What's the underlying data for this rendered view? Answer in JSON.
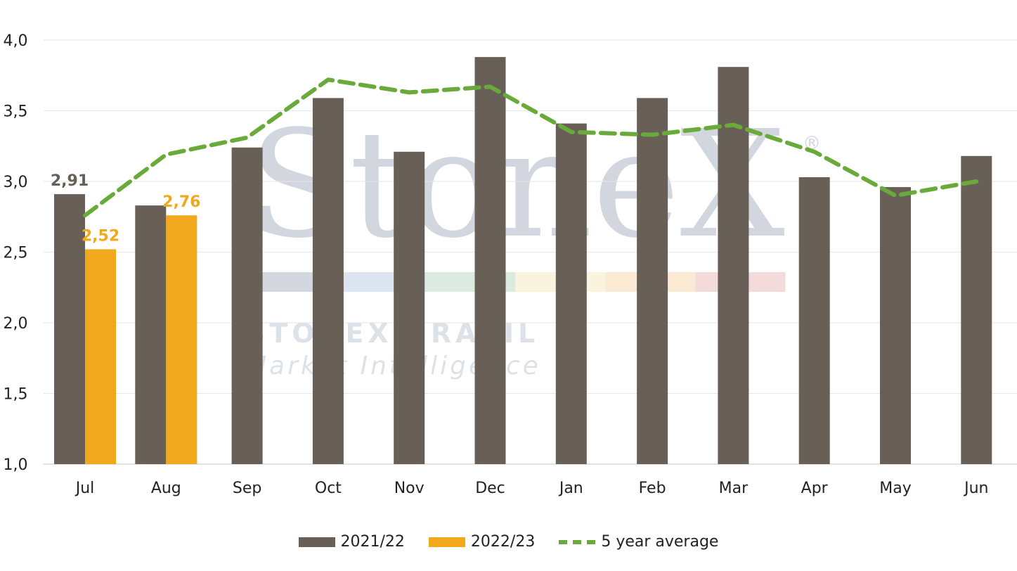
{
  "chart_data": {
    "type": "bar",
    "categories": [
      "Jul",
      "Aug",
      "Sep",
      "Oct",
      "Nov",
      "Dec",
      "Jan",
      "Feb",
      "Mar",
      "Apr",
      "May",
      "Jun"
    ],
    "series": [
      {
        "name": "2021/22",
        "kind": "bar",
        "color": "#686057",
        "values": [
          2.91,
          2.83,
          3.24,
          3.59,
          3.21,
          3.88,
          3.41,
          3.59,
          3.81,
          3.03,
          2.96,
          3.18
        ]
      },
      {
        "name": "2022/23",
        "kind": "bar",
        "color": "#f2a81d",
        "values": [
          2.52,
          2.76,
          null,
          null,
          null,
          null,
          null,
          null,
          null,
          null,
          null,
          null
        ]
      },
      {
        "name": "5 year average",
        "kind": "line",
        "style": "dashed",
        "color": "#6aaa3a",
        "values": [
          2.76,
          3.19,
          3.31,
          3.72,
          3.63,
          3.67,
          3.35,
          3.33,
          3.4,
          3.21,
          2.9,
          3.0
        ]
      }
    ],
    "data_labels": [
      {
        "series": "2021/22",
        "category": "Jul",
        "text": "2,91",
        "color": "#686057"
      },
      {
        "series": "2022/23",
        "category": "Jul",
        "text": "2,52",
        "color": "#f2a81d"
      },
      {
        "series": "2022/23",
        "category": "Aug",
        "text": "2,76",
        "color": "#f2a81d"
      }
    ],
    "ylim": [
      1.0,
      4.0
    ],
    "yticks": [
      "1,0",
      "1,5",
      "2,0",
      "2,5",
      "3,0",
      "3,5",
      "4,0"
    ],
    "ytick_values": [
      1.0,
      1.5,
      2.0,
      2.5,
      3.0,
      3.5,
      4.0
    ],
    "grid": true,
    "legend_position": "bottom-center",
    "title": "",
    "xlabel": "",
    "ylabel": ""
  },
  "watermark": {
    "logo_text": "StoneX",
    "registered": "®",
    "line1": "STONEX BRASIL",
    "line2": "Market Intelligence",
    "color": "#c9d0da",
    "band_colors": [
      "#c9d0da",
      "#d6e2f2",
      "#d7e8da",
      "#faf3da",
      "#fbe6cd",
      "#f2d5d5"
    ]
  }
}
